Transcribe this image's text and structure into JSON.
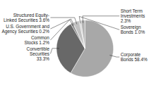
{
  "chart_data": {
    "type": "pie",
    "categories": [
      "Corporate\nBonds 58.4%",
      "Convertible\nSecurities\n33.3%",
      "Common\nStocks 1.2%",
      "U.S. Government and\nAgency Securities 0.2%",
      "Structured Equity-\nLinked Securities 3.6%",
      "Sovereign\nBonds 1.0%",
      "Short Term\nInvestments\n2.3%"
    ],
    "values": [
      58.4,
      33.3,
      1.2,
      0.2,
      3.6,
      1.0,
      2.3
    ],
    "colors": [
      "#a8a8a8",
      "#686868",
      "#888888",
      "#1a1a1a",
      "#c0c0c0",
      "#d4d4d4",
      "#b4b4b4"
    ]
  }
}
